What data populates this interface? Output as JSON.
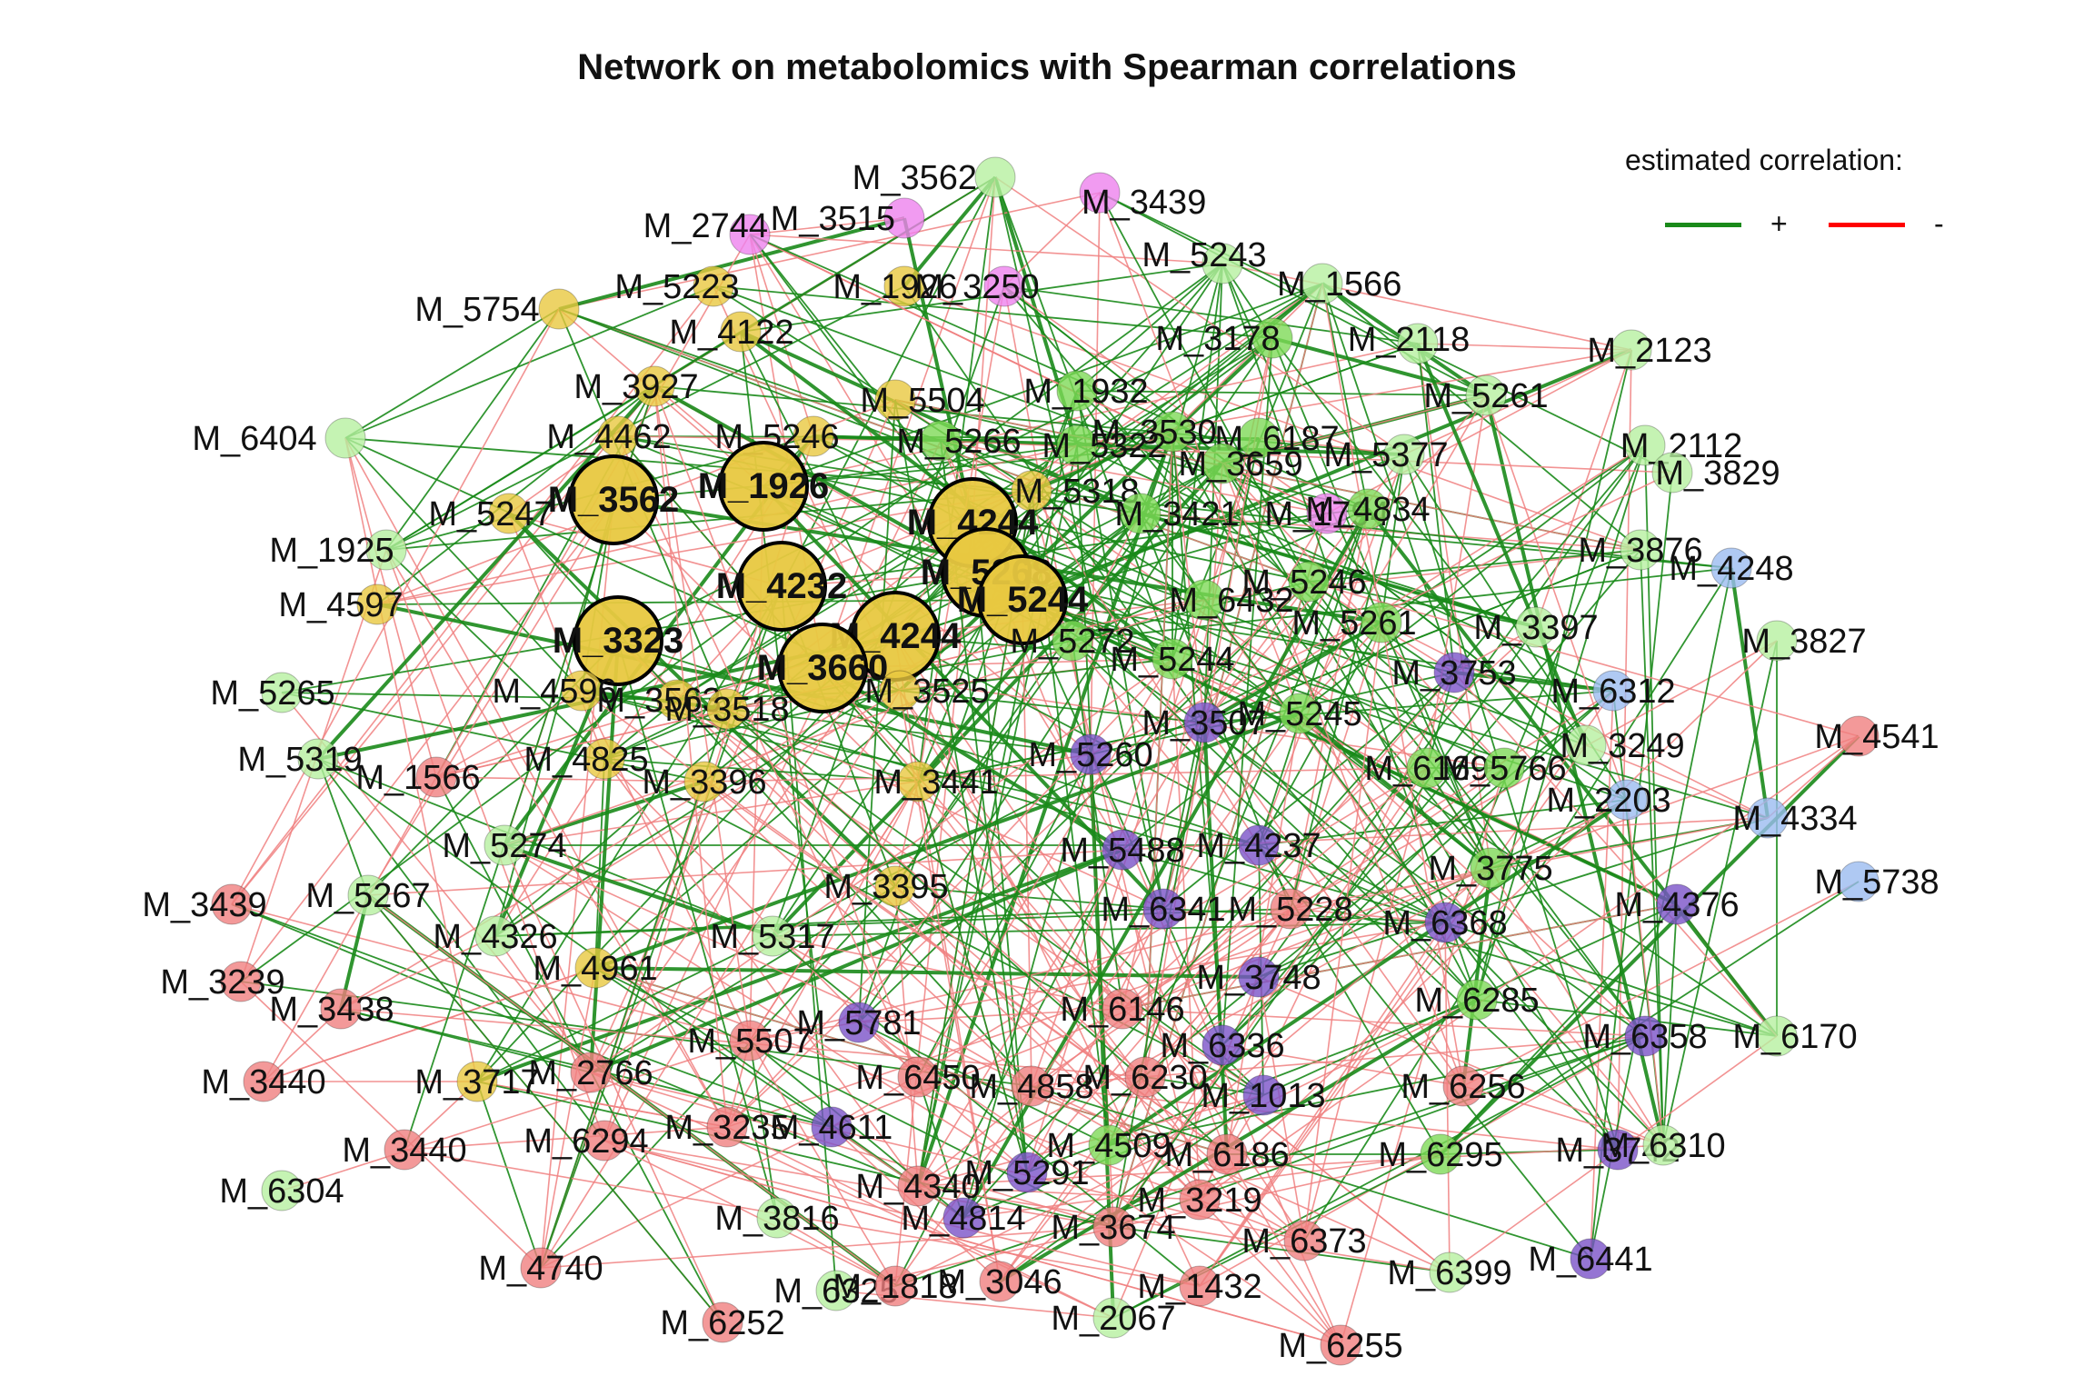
{
  "title": "Network on metabolomics with Spearman correlations",
  "legend": {
    "title": "estimated correlation:",
    "positive": {
      "symbol": "+",
      "color": "#1a8a1a"
    },
    "negative": {
      "symbol": "-",
      "color": "#ff0000"
    }
  },
  "colors": {
    "positive_edge": "#1a8a1a",
    "negative_edge": "#f08080",
    "cluster_yellow": "#e8c840",
    "cluster_lightgreen": "#b7f0a0",
    "cluster_green": "#7ed957",
    "cluster_purple": "#7a52c8",
    "cluster_blue": "#9bbcf0",
    "cluster_red": "#f08080",
    "cluster_pink": "#ee82ee"
  },
  "nodes": [
    {
      "id": "M_3562",
      "label": "M_3562",
      "group": "lightgreen"
    },
    {
      "id": "M_3439",
      "label": "M_3439",
      "group": "pink"
    },
    {
      "id": "M_3515",
      "label": "M_3515",
      "group": "pink"
    },
    {
      "id": "M_2744",
      "label": "M_2744",
      "group": "pink"
    },
    {
      "id": "M_5243",
      "label": "M_5243",
      "group": "lightgreen"
    },
    {
      "id": "M_1566",
      "label": "M_1566",
      "group": "lightgreen"
    },
    {
      "id": "M_5223",
      "label": "M_5223",
      "group": "yellow"
    },
    {
      "id": "M_1926",
      "label": "M_1926",
      "group": "yellow"
    },
    {
      "id": "M_3250",
      "label": "M_3250",
      "group": "pink"
    },
    {
      "id": "M_5754",
      "label": "M_5754",
      "group": "yellow"
    },
    {
      "id": "M_4122",
      "label": "M_4122",
      "group": "yellow"
    },
    {
      "id": "M_3178",
      "label": "M_3178",
      "group": "green"
    },
    {
      "id": "M_2118",
      "label": "M_2118",
      "group": "lightgreen"
    },
    {
      "id": "M_2123",
      "label": "M_2123",
      "group": "lightgreen"
    },
    {
      "id": "M_3927",
      "label": "M_3927",
      "group": "yellow"
    },
    {
      "id": "M_5504",
      "label": "M_5504",
      "group": "yellow"
    },
    {
      "id": "M_1932",
      "label": "M_1932",
      "group": "green"
    },
    {
      "id": "M_5261",
      "label": "M_5261",
      "group": "lightgreen"
    },
    {
      "id": "M_6404",
      "label": "M_6404",
      "group": "lightgreen"
    },
    {
      "id": "M_4462",
      "label": "M_4462",
      "group": "yellow"
    },
    {
      "id": "M_5246",
      "label": "M_5246",
      "group": "yellow"
    },
    {
      "id": "M_3530",
      "label": "M_3530",
      "group": "green"
    },
    {
      "id": "M_6187",
      "label": "M_6187",
      "group": "green"
    },
    {
      "id": "M_2112",
      "label": "M_2112",
      "group": "lightgreen"
    },
    {
      "id": "M_1926b",
      "label": "M_1926",
      "group": "yellow",
      "hub": true
    },
    {
      "id": "M_5266",
      "label": "M_5266",
      "group": "green"
    },
    {
      "id": "M_5322",
      "label": "M_5322",
      "group": "green"
    },
    {
      "id": "M_3659",
      "label": "M_3659",
      "group": "green"
    },
    {
      "id": "M_5377",
      "label": "M_5377",
      "group": "lightgreen"
    },
    {
      "id": "M_3829",
      "label": "M_3829",
      "group": "lightgreen"
    },
    {
      "id": "M_3562b",
      "label": "M_3562",
      "group": "yellow",
      "hub": true
    },
    {
      "id": "M_5318",
      "label": "M_5318",
      "group": "yellow"
    },
    {
      "id": "M_4244",
      "label": "M_4244",
      "group": "yellow",
      "hub": true
    },
    {
      "id": "M_3421",
      "label": "M_3421",
      "group": "green"
    },
    {
      "id": "M_1794",
      "label": "M_1794",
      "group": "pink"
    },
    {
      "id": "M_4834",
      "label": "M_4834",
      "group": "green"
    },
    {
      "id": "M_5247",
      "label": "M_5247",
      "group": "yellow"
    },
    {
      "id": "M_1925",
      "label": "M_1925",
      "group": "lightgreen"
    },
    {
      "id": "M_3876",
      "label": "M_3876",
      "group": "lightgreen"
    },
    {
      "id": "M_4248",
      "label": "M_4248",
      "group": "blue"
    },
    {
      "id": "M_4232",
      "label": "M_4232",
      "group": "yellow",
      "hub": true
    },
    {
      "id": "M_5268",
      "label": "M_5268",
      "group": "yellow",
      "hub": true
    },
    {
      "id": "M_5244",
      "label": "M_5244",
      "group": "yellow",
      "hub": true
    },
    {
      "id": "M_4597",
      "label": "M_4597",
      "group": "yellow"
    },
    {
      "id": "M_6432",
      "label": "M_6432",
      "group": "green"
    },
    {
      "id": "M_5246c",
      "label": "M_5246",
      "group": "green"
    },
    {
      "id": "M_3323",
      "label": "M_3323",
      "group": "yellow",
      "hub": true
    },
    {
      "id": "M_4244b",
      "label": "M_4244",
      "group": "yellow",
      "hub": true
    },
    {
      "id": "M_5261b",
      "label": "M_5261",
      "group": "green"
    },
    {
      "id": "M_3397",
      "label": "M_3397",
      "group": "lightgreen"
    },
    {
      "id": "M_3827",
      "label": "M_3827",
      "group": "lightgreen"
    },
    {
      "id": "M_3660",
      "label": "M_3660",
      "group": "yellow",
      "hub": true
    },
    {
      "id": "M_5272",
      "label": "M_5272",
      "group": "green"
    },
    {
      "id": "M_5244b",
      "label": "M_5244",
      "group": "green"
    },
    {
      "id": "M_3753",
      "label": "M_3753",
      "group": "purple"
    },
    {
      "id": "M_6312",
      "label": "M_6312",
      "group": "blue"
    },
    {
      "id": "M_5265",
      "label": "M_5265",
      "group": "lightgreen"
    },
    {
      "id": "M_4596",
      "label": "M_4596",
      "group": "yellow"
    },
    {
      "id": "M_3563",
      "label": "M_3563",
      "group": "yellow"
    },
    {
      "id": "M_3518",
      "label": "M_3518",
      "group": "yellow"
    },
    {
      "id": "M_3525",
      "label": "M_3525",
      "group": "yellow"
    },
    {
      "id": "M_3507",
      "label": "M_3507",
      "group": "purple"
    },
    {
      "id": "M_5245",
      "label": "M_5245",
      "group": "green"
    },
    {
      "id": "M_4541",
      "label": "M_4541",
      "group": "red"
    },
    {
      "id": "M_5319",
      "label": "M_5319",
      "group": "lightgreen"
    },
    {
      "id": "M_4825",
      "label": "M_4825",
      "group": "yellow"
    },
    {
      "id": "M_5260",
      "label": "M_5260",
      "group": "purple"
    },
    {
      "id": "M_6169",
      "label": "M_6169",
      "group": "green"
    },
    {
      "id": "M_3249",
      "label": "M_3249",
      "group": "lightgreen"
    },
    {
      "id": "M_1566b",
      "label": "M_1566",
      "group": "red"
    },
    {
      "id": "M_3396",
      "label": "M_3396",
      "group": "yellow"
    },
    {
      "id": "M_3441",
      "label": "M_3441",
      "group": "yellow"
    },
    {
      "id": "M_5766",
      "label": "M_5766",
      "group": "green"
    },
    {
      "id": "M_2203",
      "label": "M_2203",
      "group": "blue"
    },
    {
      "id": "M_4334",
      "label": "M_4334",
      "group": "blue"
    },
    {
      "id": "M_5274",
      "label": "M_5274",
      "group": "lightgreen"
    },
    {
      "id": "M_4237",
      "label": "M_4237",
      "group": "purple"
    },
    {
      "id": "M_5488",
      "label": "M_5488",
      "group": "purple"
    },
    {
      "id": "M_3775",
      "label": "M_3775",
      "group": "green"
    },
    {
      "id": "M_5738",
      "label": "M_5738",
      "group": "blue"
    },
    {
      "id": "M_3439b",
      "label": "M_3439",
      "group": "red"
    },
    {
      "id": "M_5267",
      "label": "M_5267",
      "group": "lightgreen"
    },
    {
      "id": "M_3395",
      "label": "M_3395",
      "group": "yellow"
    },
    {
      "id": "M_6341",
      "label": "M_6341",
      "group": "purple"
    },
    {
      "id": "M_5228",
      "label": "M_5228",
      "group": "red"
    },
    {
      "id": "M_4376",
      "label": "M_4376",
      "group": "purple"
    },
    {
      "id": "M_6368",
      "label": "M_6368",
      "group": "purple"
    },
    {
      "id": "M_4326",
      "label": "M_4326",
      "group": "lightgreen"
    },
    {
      "id": "M_5317",
      "label": "M_5317",
      "group": "lightgreen"
    },
    {
      "id": "M_4961",
      "label": "M_4961",
      "group": "yellow"
    },
    {
      "id": "M_3239",
      "label": "M_3239",
      "group": "red"
    },
    {
      "id": "M_3438",
      "label": "M_3438",
      "group": "red"
    },
    {
      "id": "M_3748",
      "label": "M_3748",
      "group": "purple"
    },
    {
      "id": "M_6285",
      "label": "M_6285",
      "group": "green"
    },
    {
      "id": "M_6146",
      "label": "M_6146",
      "group": "red"
    },
    {
      "id": "M_5781",
      "label": "M_5781",
      "group": "purple"
    },
    {
      "id": "M_6336",
      "label": "M_6336",
      "group": "purple"
    },
    {
      "id": "M_6358",
      "label": "M_6358",
      "group": "purple"
    },
    {
      "id": "M_6170",
      "label": "M_6170",
      "group": "lightgreen"
    },
    {
      "id": "M_3717",
      "label": "M_3717",
      "group": "yellow"
    },
    {
      "id": "M_2766",
      "label": "M_2766",
      "group": "red"
    },
    {
      "id": "M_5507",
      "label": "M_5507",
      "group": "red"
    },
    {
      "id": "M_3440",
      "label": "M_3440",
      "group": "red"
    },
    {
      "id": "M_6450",
      "label": "M_6450",
      "group": "red"
    },
    {
      "id": "M_4858",
      "label": "M_4858",
      "group": "red"
    },
    {
      "id": "M_6230",
      "label": "M_6230",
      "group": "red"
    },
    {
      "id": "M_1013",
      "label": "M_1013",
      "group": "purple"
    },
    {
      "id": "M_6256",
      "label": "M_6256",
      "group": "red"
    },
    {
      "id": "M_3440b",
      "label": "M_3440",
      "group": "red"
    },
    {
      "id": "M_6294",
      "label": "M_6294",
      "group": "red"
    },
    {
      "id": "M_3235",
      "label": "M_3235",
      "group": "red"
    },
    {
      "id": "M_4611",
      "label": "M_4611",
      "group": "purple"
    },
    {
      "id": "M_4509",
      "label": "M_4509",
      "group": "green"
    },
    {
      "id": "M_6186",
      "label": "M_6186",
      "group": "red"
    },
    {
      "id": "M_6295",
      "label": "M_6295",
      "group": "green"
    },
    {
      "id": "M_3742",
      "label": "M_3742",
      "group": "purple"
    },
    {
      "id": "M_6310",
      "label": "M_6310",
      "group": "lightgreen"
    },
    {
      "id": "M_6304",
      "label": "M_6304",
      "group": "lightgreen"
    },
    {
      "id": "M_4340",
      "label": "M_4340",
      "group": "red"
    },
    {
      "id": "M_5291",
      "label": "M_5291",
      "group": "purple"
    },
    {
      "id": "M_3219",
      "label": "M_3219",
      "group": "red"
    },
    {
      "id": "M_3816",
      "label": "M_3816",
      "group": "lightgreen"
    },
    {
      "id": "M_4814",
      "label": "M_4814",
      "group": "purple"
    },
    {
      "id": "M_3674",
      "label": "M_3674",
      "group": "red"
    },
    {
      "id": "M_6373",
      "label": "M_6373",
      "group": "red"
    },
    {
      "id": "M_4740",
      "label": "M_4740",
      "group": "red"
    },
    {
      "id": "M_6325",
      "label": "M_6325",
      "group": "lightgreen"
    },
    {
      "id": "M_1818",
      "label": "M_1818",
      "group": "red"
    },
    {
      "id": "M_3046",
      "label": "M_3046",
      "group": "red"
    },
    {
      "id": "M_1432",
      "label": "M_1432",
      "group": "red"
    },
    {
      "id": "M_6441",
      "label": "M_6441",
      "group": "purple"
    },
    {
      "id": "M_6399",
      "label": "M_6399",
      "group": "lightgreen"
    },
    {
      "id": "M_6252",
      "label": "M_6252",
      "group": "red"
    },
    {
      "id": "M_2067",
      "label": "M_2067",
      "group": "lightgreen"
    },
    {
      "id": "M_6255",
      "label": "M_6255",
      "group": "red"
    }
  ]
}
